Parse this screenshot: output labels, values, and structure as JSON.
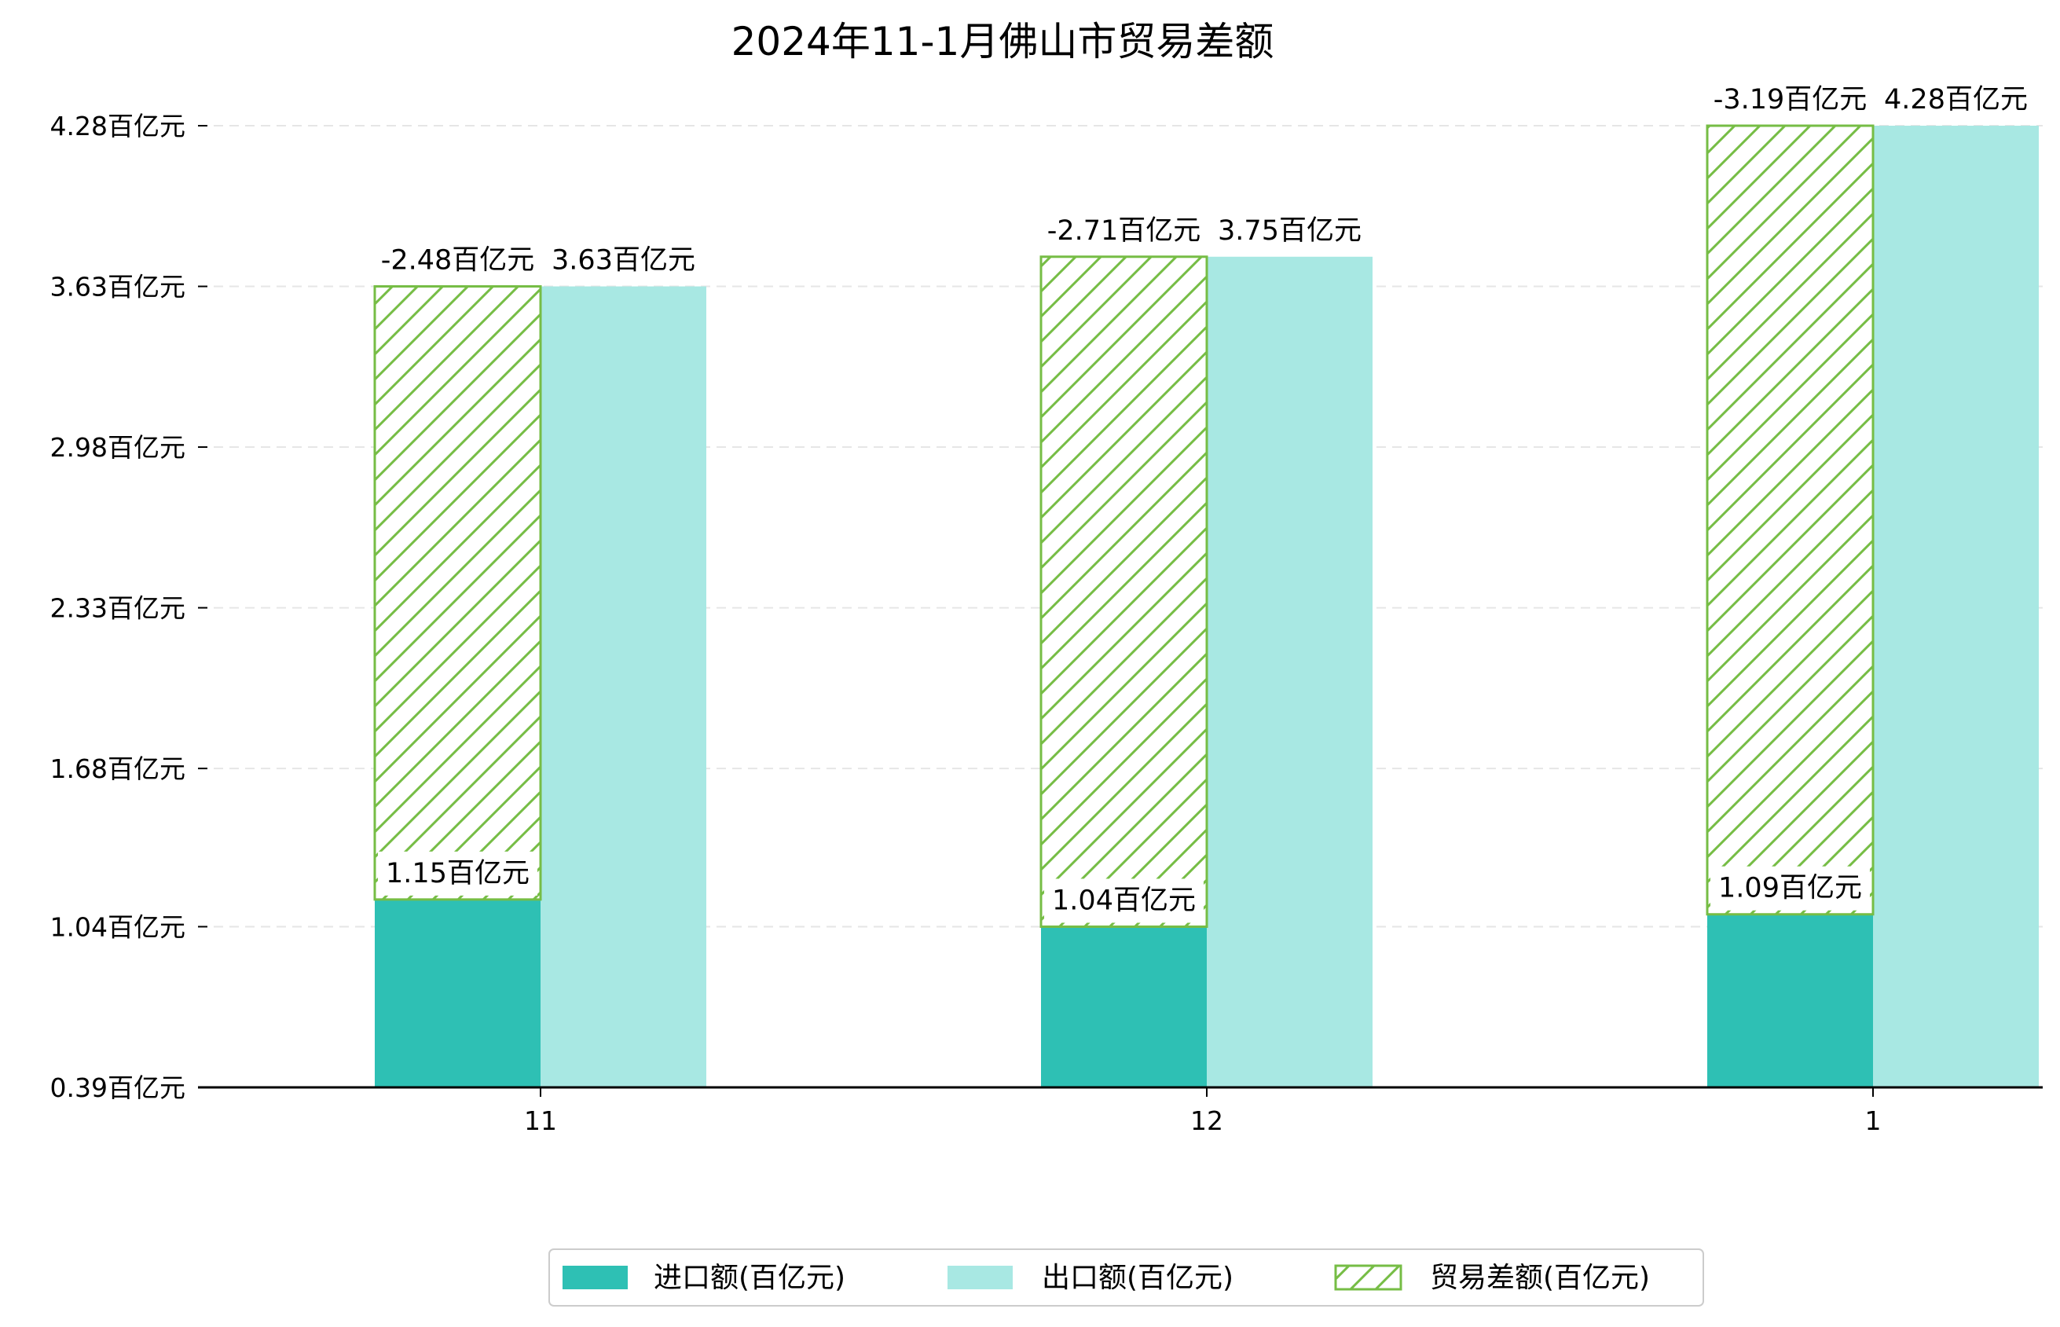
{
  "chart_data": {
    "type": "bar",
    "title": "2024年11-1月佛山市贸易差额",
    "xlabel": "",
    "ylabel": "",
    "categories": [
      "11",
      "12",
      "1"
    ],
    "series": [
      {
        "name": "进口额(百亿元)",
        "values": [
          1.15,
          1.04,
          1.09
        ],
        "labels": [
          "1.15百亿元",
          "1.04百亿元",
          "1.09百亿元"
        ],
        "color": "#2ec0b4"
      },
      {
        "name": "出口额(百亿元)",
        "values": [
          3.63,
          3.75,
          4.28
        ],
        "labels": [
          "3.63百亿元",
          "3.75百亿元",
          "4.28百亿元"
        ],
        "color": "#a8e8e3"
      },
      {
        "name": "贸易差额(百亿元)",
        "values": [
          -2.48,
          -2.71,
          -3.19
        ],
        "labels": [
          "-2.48百亿元",
          "-2.71百亿元",
          "-3.19百亿元"
        ],
        "color": "#76bd45"
      }
    ],
    "y_ticks": [
      0.39,
      1.04,
      1.68,
      2.33,
      2.98,
      3.63,
      4.28
    ],
    "y_tick_labels": [
      "0.39百亿元",
      "1.04百亿元",
      "1.68百亿元",
      "2.33百亿元",
      "2.98百亿元",
      "3.63百亿元",
      "4.28百亿元"
    ],
    "ylim": [
      0.39,
      4.28
    ],
    "grid": true,
    "legend_position": "bottom-center"
  }
}
